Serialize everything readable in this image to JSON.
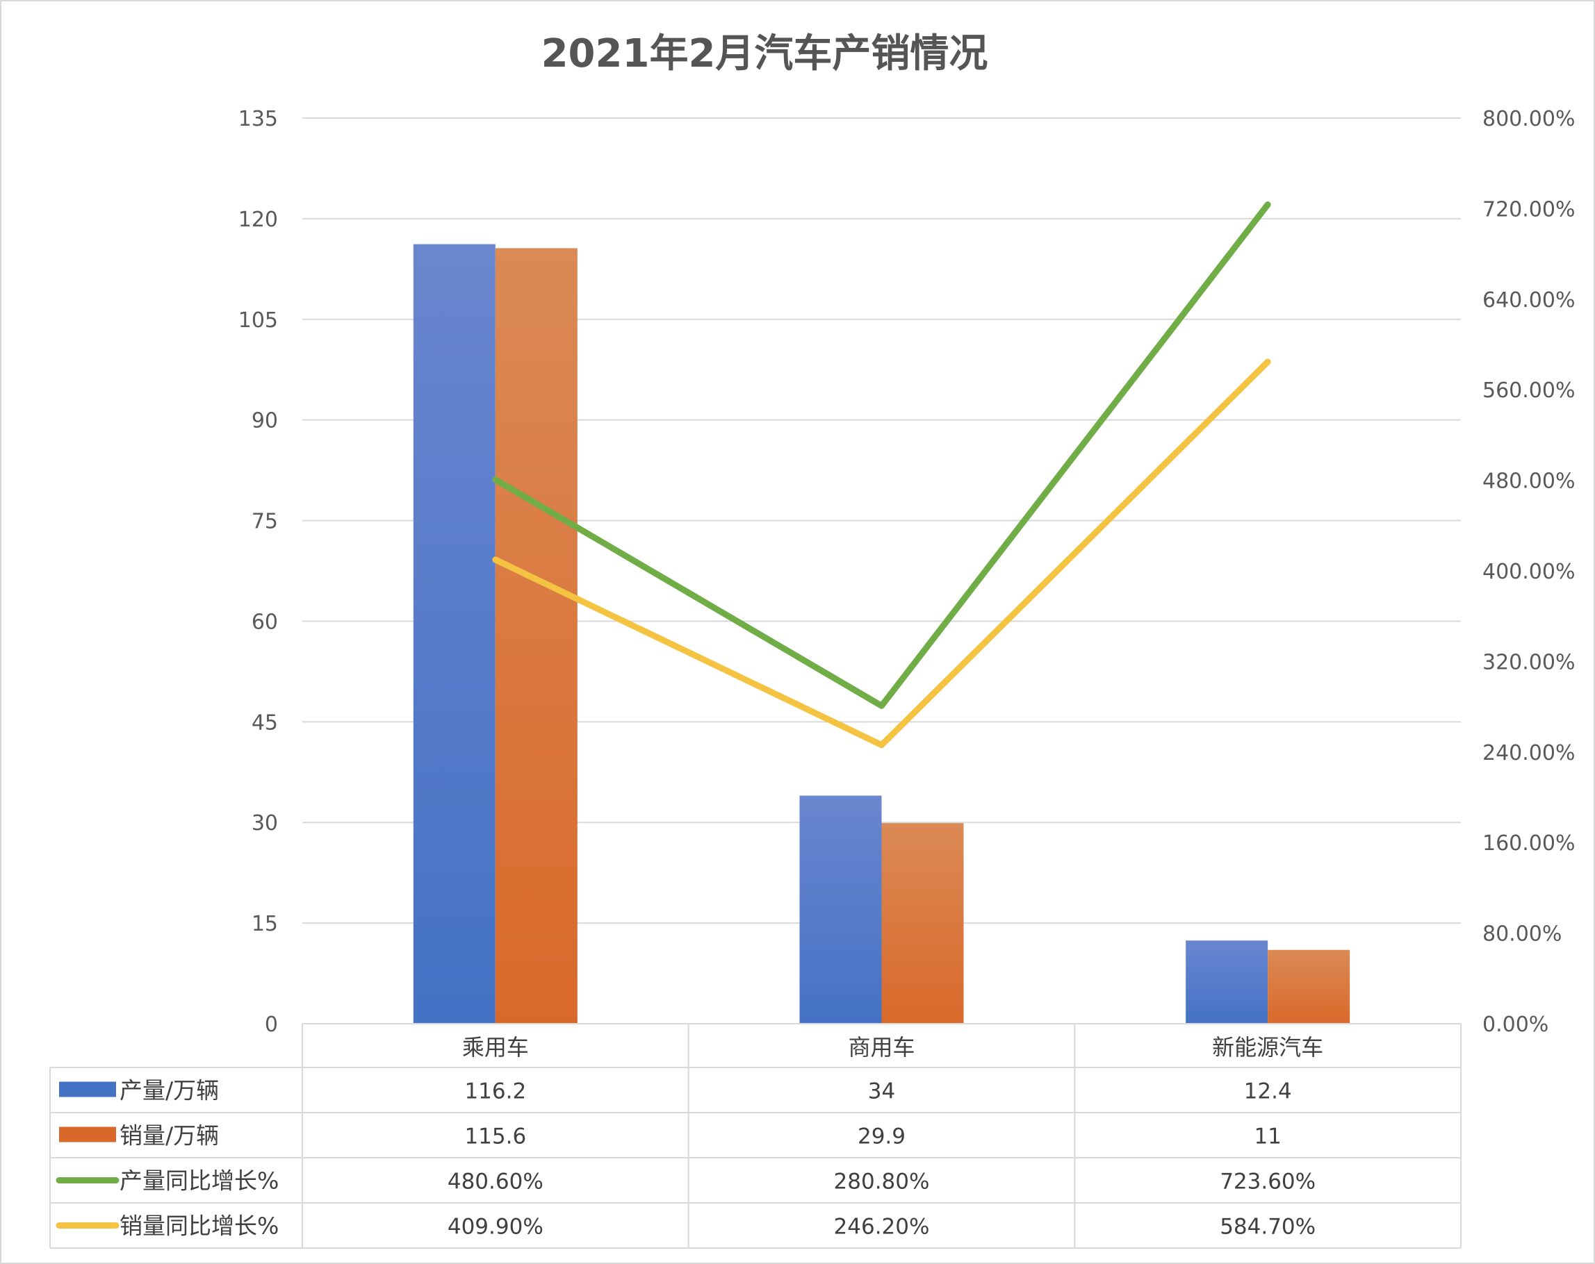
{
  "chart_data": {
    "type": "bar",
    "title": "2021年2月汽车产销情况",
    "categories": [
      "乘用车",
      "商用车",
      "新能源汽车"
    ],
    "series": [
      {
        "name": "产量/万辆",
        "type": "bar",
        "axis": "left",
        "color": "#4472C4",
        "color_light": "#6A86CF",
        "values": [
          116.2,
          34,
          12.4
        ],
        "labels": [
          "116.2",
          "34",
          "12.4"
        ]
      },
      {
        "name": "销量/万辆",
        "type": "bar",
        "axis": "left",
        "color": "#D9692A",
        "color_light": "#DB8A55",
        "values": [
          115.6,
          29.9,
          11
        ],
        "labels": [
          "115.6",
          "29.9",
          "11"
        ]
      },
      {
        "name": "产量同比增长%",
        "type": "line",
        "axis": "right",
        "color": "#70AD47",
        "values": [
          480.6,
          280.8,
          723.6
        ],
        "labels": [
          "480.60%",
          "280.80%",
          "723.60%"
        ]
      },
      {
        "name": "销量同比增长%",
        "type": "line",
        "axis": "right",
        "color": "#F5C342",
        "values": [
          409.9,
          246.2,
          584.7
        ],
        "labels": [
          "409.90%",
          "246.20%",
          "584.70%"
        ]
      }
    ],
    "y_left": {
      "min": 0,
      "max": 135,
      "step": 15,
      "ticks": [
        "0",
        "15",
        "30",
        "45",
        "60",
        "75",
        "90",
        "105",
        "120",
        "135"
      ]
    },
    "y_right": {
      "min": 0,
      "max": 800,
      "step": 80,
      "ticks": [
        "0.00%",
        "80.00%",
        "160.00%",
        "240.00%",
        "320.00%",
        "400.00%",
        "480.00%",
        "560.00%",
        "640.00%",
        "720.00%",
        "800.00%"
      ]
    },
    "grid": true,
    "legend": "data-table"
  }
}
